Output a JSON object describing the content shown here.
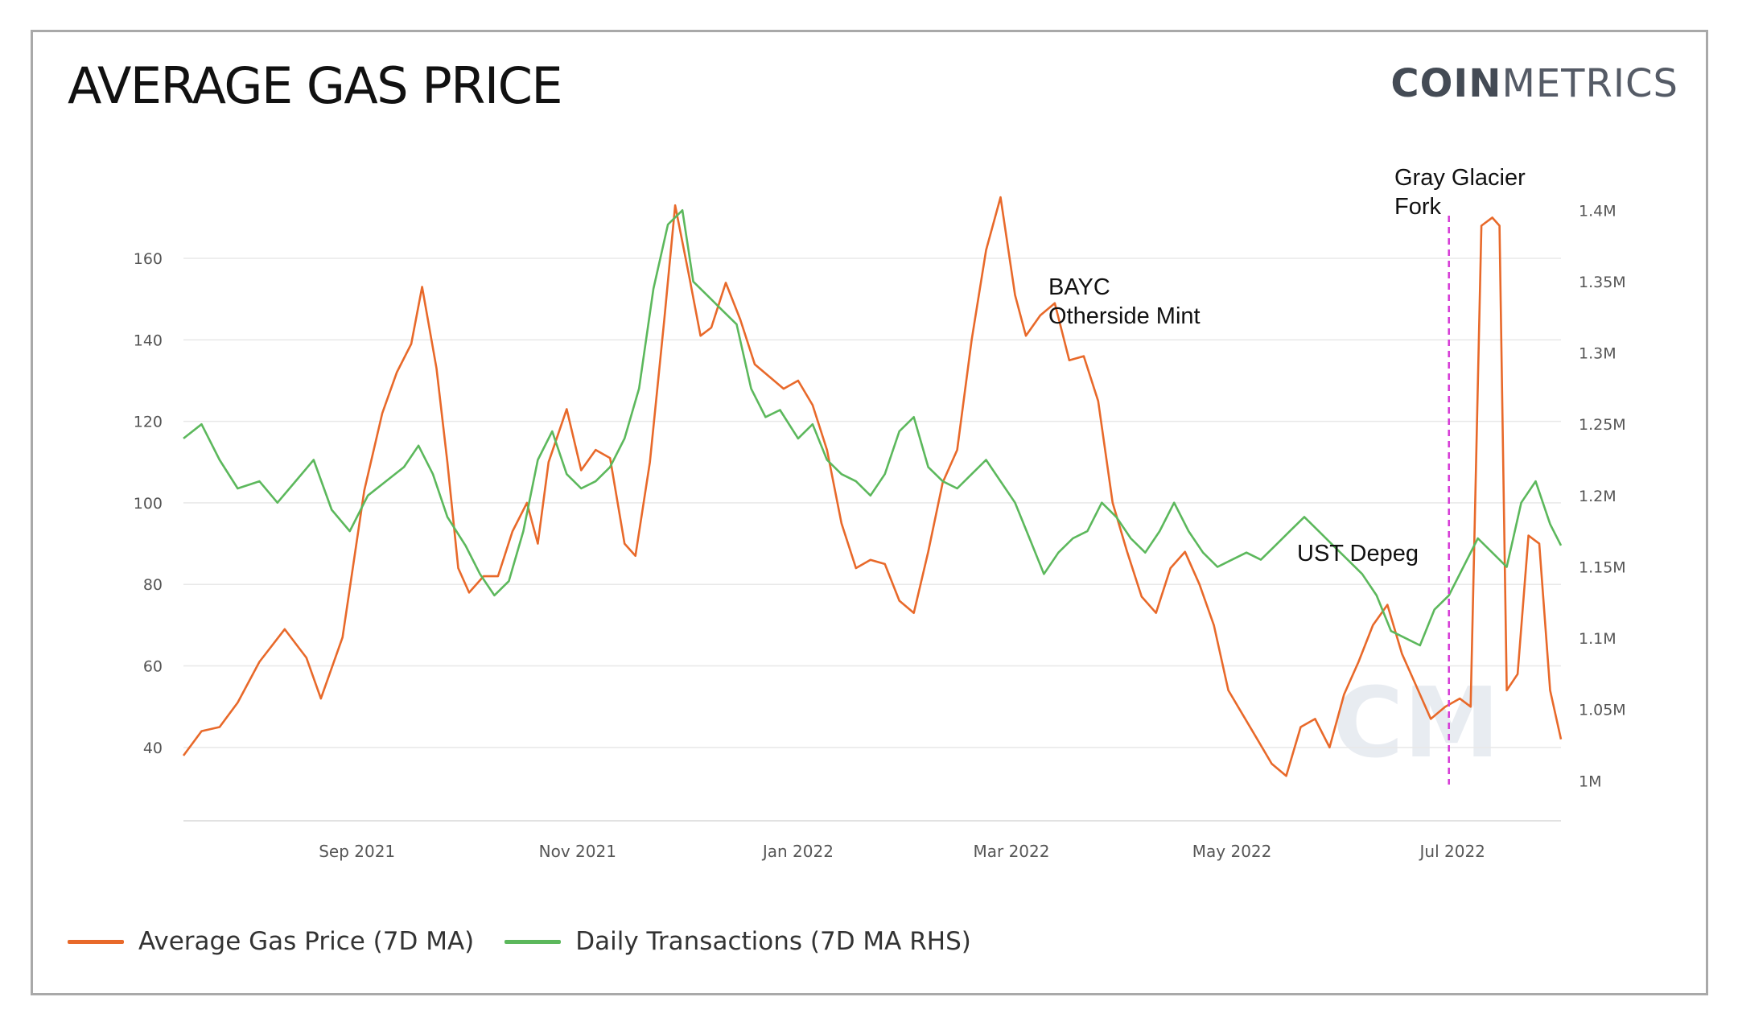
{
  "header": {
    "title": "AVERAGE GAS PRICE",
    "logo_bold": "COIN",
    "logo_light": "METRICS"
  },
  "colors": {
    "gas": "#e8692a",
    "tx": "#5cb85c",
    "fork_line": "#d63ad6",
    "grid": "#e8e8e8",
    "tick_text": "#555555",
    "watermark": "#dfe4ec"
  },
  "chart_data": {
    "type": "line",
    "x_axis": {
      "type": "date",
      "range": [
        "2021-07-15",
        "2022-07-31"
      ],
      "tick_labels": [
        "Sep 2021",
        "Nov 2021",
        "Jan 2022",
        "Mar 2022",
        "May 2022",
        "Jul 2022"
      ],
      "tick_dates": [
        "2021-09-01",
        "2021-11-01",
        "2022-01-01",
        "2022-03-01",
        "2022-05-01",
        "2022-07-01"
      ]
    },
    "y_left": {
      "ticks": [
        40,
        60,
        80,
        100,
        120,
        140,
        160
      ],
      "range": [
        22,
        176
      ]
    },
    "y_right": {
      "ticks": [
        1000000,
        1050000,
        1100000,
        1150000,
        1200000,
        1250000,
        1300000,
        1350000,
        1400000
      ],
      "tick_labels": [
        "1M",
        "1.05M",
        "1.1M",
        "1.15M",
        "1.2M",
        "1.25M",
        "1.3M",
        "1.35M",
        "1.4M"
      ],
      "range": [
        972000,
        1412000
      ]
    },
    "grid": true,
    "legend_position": "bottom-left",
    "series": [
      {
        "name": "Average Gas Price (7D MA)",
        "axis": "left",
        "points": [
          [
            "2021-07-15",
            38
          ],
          [
            "2021-07-20",
            44
          ],
          [
            "2021-07-25",
            45
          ],
          [
            "2021-07-30",
            51
          ],
          [
            "2021-08-05",
            61
          ],
          [
            "2021-08-12",
            69
          ],
          [
            "2021-08-18",
            62
          ],
          [
            "2021-08-22",
            52
          ],
          [
            "2021-08-28",
            67
          ],
          [
            "2021-09-03",
            103
          ],
          [
            "2021-09-08",
            122
          ],
          [
            "2021-09-12",
            132
          ],
          [
            "2021-09-16",
            139
          ],
          [
            "2021-09-19",
            153
          ],
          [
            "2021-09-23",
            133
          ],
          [
            "2021-09-26",
            110
          ],
          [
            "2021-09-29",
            84
          ],
          [
            "2021-10-02",
            78
          ],
          [
            "2021-10-06",
            82
          ],
          [
            "2021-10-10",
            82
          ],
          [
            "2021-10-14",
            93
          ],
          [
            "2021-10-18",
            100
          ],
          [
            "2021-10-21",
            90
          ],
          [
            "2021-10-24",
            110
          ],
          [
            "2021-10-29",
            123
          ],
          [
            "2021-11-02",
            108
          ],
          [
            "2021-11-06",
            113
          ],
          [
            "2021-11-10",
            111
          ],
          [
            "2021-11-14",
            90
          ],
          [
            "2021-11-17",
            87
          ],
          [
            "2021-11-21",
            110
          ],
          [
            "2021-11-25",
            145
          ],
          [
            "2021-11-28",
            173
          ],
          [
            "2021-12-02",
            155
          ],
          [
            "2021-12-05",
            141
          ],
          [
            "2021-12-08",
            143
          ],
          [
            "2021-12-12",
            154
          ],
          [
            "2021-12-16",
            145
          ],
          [
            "2021-12-20",
            134
          ],
          [
            "2021-12-24",
            131
          ],
          [
            "2021-12-28",
            128
          ],
          [
            "2022-01-01",
            130
          ],
          [
            "2022-01-05",
            124
          ],
          [
            "2022-01-09",
            113
          ],
          [
            "2022-01-13",
            95
          ],
          [
            "2022-01-17",
            84
          ],
          [
            "2022-01-21",
            86
          ],
          [
            "2022-01-25",
            85
          ],
          [
            "2022-01-29",
            76
          ],
          [
            "2022-02-02",
            73
          ],
          [
            "2022-02-06",
            88
          ],
          [
            "2022-02-10",
            105
          ],
          [
            "2022-02-14",
            113
          ],
          [
            "2022-02-18",
            140
          ],
          [
            "2022-02-22",
            162
          ],
          [
            "2022-02-26",
            175
          ],
          [
            "2022-03-02",
            151
          ],
          [
            "2022-03-05",
            141
          ],
          [
            "2022-03-09",
            146
          ],
          [
            "2022-03-13",
            149
          ],
          [
            "2022-03-17",
            135
          ],
          [
            "2022-03-21",
            136
          ],
          [
            "2022-03-25",
            125
          ],
          [
            "2022-03-29",
            100
          ],
          [
            "2022-04-02",
            88
          ],
          [
            "2022-04-06",
            77
          ],
          [
            "2022-04-10",
            73
          ],
          [
            "2022-04-14",
            84
          ],
          [
            "2022-04-18",
            88
          ],
          [
            "2022-04-22",
            80
          ],
          [
            "2022-04-26",
            70
          ],
          [
            "2022-04-30",
            54
          ],
          [
            "2022-05-04",
            48
          ],
          [
            "2022-05-08",
            42
          ],
          [
            "2022-05-12",
            36
          ],
          [
            "2022-05-16",
            33
          ],
          [
            "2022-05-20",
            45
          ],
          [
            "2022-05-24",
            47
          ],
          [
            "2022-05-28",
            40
          ],
          [
            "2022-06-01",
            53
          ],
          [
            "2022-06-05",
            61
          ],
          [
            "2022-06-09",
            70
          ],
          [
            "2022-06-13",
            75
          ],
          [
            "2022-06-17",
            63
          ],
          [
            "2022-06-21",
            55
          ],
          [
            "2022-06-25",
            47
          ],
          [
            "2022-06-29",
            50
          ],
          [
            "2022-07-03",
            52
          ],
          [
            "2022-07-06",
            50
          ],
          [
            "2022-07-09",
            168
          ],
          [
            "2022-07-12",
            170
          ],
          [
            "2022-07-14",
            168
          ],
          [
            "2022-07-16",
            54
          ],
          [
            "2022-07-19",
            58
          ],
          [
            "2022-07-22",
            92
          ],
          [
            "2022-07-25",
            90
          ],
          [
            "2022-07-28",
            54
          ],
          [
            "2022-07-31",
            42
          ]
        ]
      },
      {
        "name": "Daily Transactions (7D MA RHS)",
        "axis": "right",
        "points": [
          [
            "2021-07-15",
            1240000
          ],
          [
            "2021-07-20",
            1250000
          ],
          [
            "2021-07-25",
            1225000
          ],
          [
            "2021-07-30",
            1205000
          ],
          [
            "2021-08-05",
            1210000
          ],
          [
            "2021-08-10",
            1195000
          ],
          [
            "2021-08-15",
            1210000
          ],
          [
            "2021-08-20",
            1225000
          ],
          [
            "2021-08-25",
            1190000
          ],
          [
            "2021-08-30",
            1175000
          ],
          [
            "2021-09-04",
            1200000
          ],
          [
            "2021-09-09",
            1210000
          ],
          [
            "2021-09-14",
            1220000
          ],
          [
            "2021-09-18",
            1235000
          ],
          [
            "2021-09-22",
            1215000
          ],
          [
            "2021-09-26",
            1185000
          ],
          [
            "2021-10-01",
            1165000
          ],
          [
            "2021-10-05",
            1145000
          ],
          [
            "2021-10-09",
            1130000
          ],
          [
            "2021-10-13",
            1140000
          ],
          [
            "2021-10-17",
            1175000
          ],
          [
            "2021-10-21",
            1225000
          ],
          [
            "2021-10-25",
            1245000
          ],
          [
            "2021-10-29",
            1215000
          ],
          [
            "2021-11-02",
            1205000
          ],
          [
            "2021-11-06",
            1210000
          ],
          [
            "2021-11-10",
            1220000
          ],
          [
            "2021-11-14",
            1240000
          ],
          [
            "2021-11-18",
            1275000
          ],
          [
            "2021-11-22",
            1345000
          ],
          [
            "2021-11-26",
            1390000
          ],
          [
            "2021-11-30",
            1400000
          ],
          [
            "2021-12-03",
            1350000
          ],
          [
            "2021-12-07",
            1340000
          ],
          [
            "2021-12-11",
            1330000
          ],
          [
            "2021-12-15",
            1320000
          ],
          [
            "2021-12-19",
            1275000
          ],
          [
            "2021-12-23",
            1255000
          ],
          [
            "2021-12-27",
            1260000
          ],
          [
            "2022-01-01",
            1240000
          ],
          [
            "2022-01-05",
            1250000
          ],
          [
            "2022-01-09",
            1225000
          ],
          [
            "2022-01-13",
            1215000
          ],
          [
            "2022-01-17",
            1210000
          ],
          [
            "2022-01-21",
            1200000
          ],
          [
            "2022-01-25",
            1215000
          ],
          [
            "2022-01-29",
            1245000
          ],
          [
            "2022-02-02",
            1255000
          ],
          [
            "2022-02-06",
            1220000
          ],
          [
            "2022-02-10",
            1210000
          ],
          [
            "2022-02-14",
            1205000
          ],
          [
            "2022-02-18",
            1215000
          ],
          [
            "2022-02-22",
            1225000
          ],
          [
            "2022-02-26",
            1210000
          ],
          [
            "2022-03-02",
            1195000
          ],
          [
            "2022-03-06",
            1170000
          ],
          [
            "2022-03-10",
            1145000
          ],
          [
            "2022-03-14",
            1160000
          ],
          [
            "2022-03-18",
            1170000
          ],
          [
            "2022-03-22",
            1175000
          ],
          [
            "2022-03-26",
            1195000
          ],
          [
            "2022-03-30",
            1185000
          ],
          [
            "2022-04-03",
            1170000
          ],
          [
            "2022-04-07",
            1160000
          ],
          [
            "2022-04-11",
            1175000
          ],
          [
            "2022-04-15",
            1195000
          ],
          [
            "2022-04-19",
            1175000
          ],
          [
            "2022-04-23",
            1160000
          ],
          [
            "2022-04-27",
            1150000
          ],
          [
            "2022-05-01",
            1155000
          ],
          [
            "2022-05-05",
            1160000
          ],
          [
            "2022-05-09",
            1155000
          ],
          [
            "2022-05-13",
            1165000
          ],
          [
            "2022-05-17",
            1175000
          ],
          [
            "2022-05-21",
            1185000
          ],
          [
            "2022-05-25",
            1175000
          ],
          [
            "2022-05-29",
            1165000
          ],
          [
            "2022-06-02",
            1155000
          ],
          [
            "2022-06-06",
            1145000
          ],
          [
            "2022-06-10",
            1130000
          ],
          [
            "2022-06-14",
            1105000
          ],
          [
            "2022-06-18",
            1100000
          ],
          [
            "2022-06-22",
            1095000
          ],
          [
            "2022-06-26",
            1120000
          ],
          [
            "2022-06-30",
            1130000
          ],
          [
            "2022-07-04",
            1150000
          ],
          [
            "2022-07-08",
            1170000
          ],
          [
            "2022-07-12",
            1160000
          ],
          [
            "2022-07-16",
            1150000
          ],
          [
            "2022-07-20",
            1195000
          ],
          [
            "2022-07-24",
            1210000
          ],
          [
            "2022-07-28",
            1180000
          ],
          [
            "2022-07-31",
            1165000
          ]
        ]
      }
    ],
    "annotations": [
      {
        "text_lines": [
          "BAYC",
          "Otherside Mint"
        ],
        "date": "2022-04-30",
        "value": 160
      },
      {
        "text_lines": [
          "UST Depeg"
        ],
        "date": "2022-05-09",
        "value": 100
      },
      {
        "text_lines": [
          "Gray Glacier",
          "Fork"
        ],
        "date": "2022-06-30",
        "value": 176,
        "vertical_line_date": "2022-06-30"
      }
    ]
  },
  "legend": {
    "gas_label": "Average Gas Price (7D MA)",
    "tx_label": "Daily Transactions (7D MA RHS)"
  }
}
